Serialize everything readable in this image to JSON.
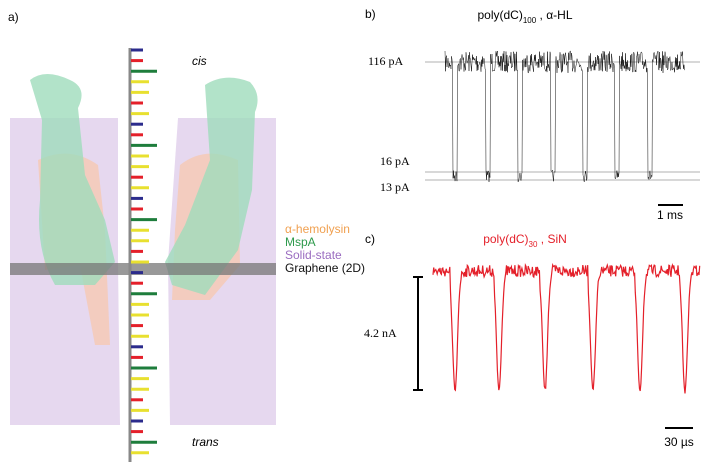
{
  "panel_a": {
    "label": "a)",
    "cis": "cis",
    "trans": "trans",
    "legend": [
      {
        "text": "α-hemolysin",
        "color": "#f0a050"
      },
      {
        "text": "MspA",
        "color": "#2e9a4c"
      },
      {
        "text": "Solid-state",
        "color": "#9a6cc0"
      },
      {
        "text": "Graphene (2D)",
        "color": "#111111"
      }
    ]
  },
  "panel_b": {
    "label": "b)",
    "title": {
      "main": "poly(dC)",
      "sub": "100",
      "rest": " , α-HL"
    },
    "levels": [
      "116 pA",
      "16 pA",
      "13 pA"
    ],
    "scale": "1 ms"
  },
  "panel_c": {
    "label": "c)",
    "title": {
      "main": "poly(dC)",
      "sub": "30",
      "rest": " , SiN"
    },
    "amplitude": "4.2 nA",
    "scale": "30 µs"
  }
}
